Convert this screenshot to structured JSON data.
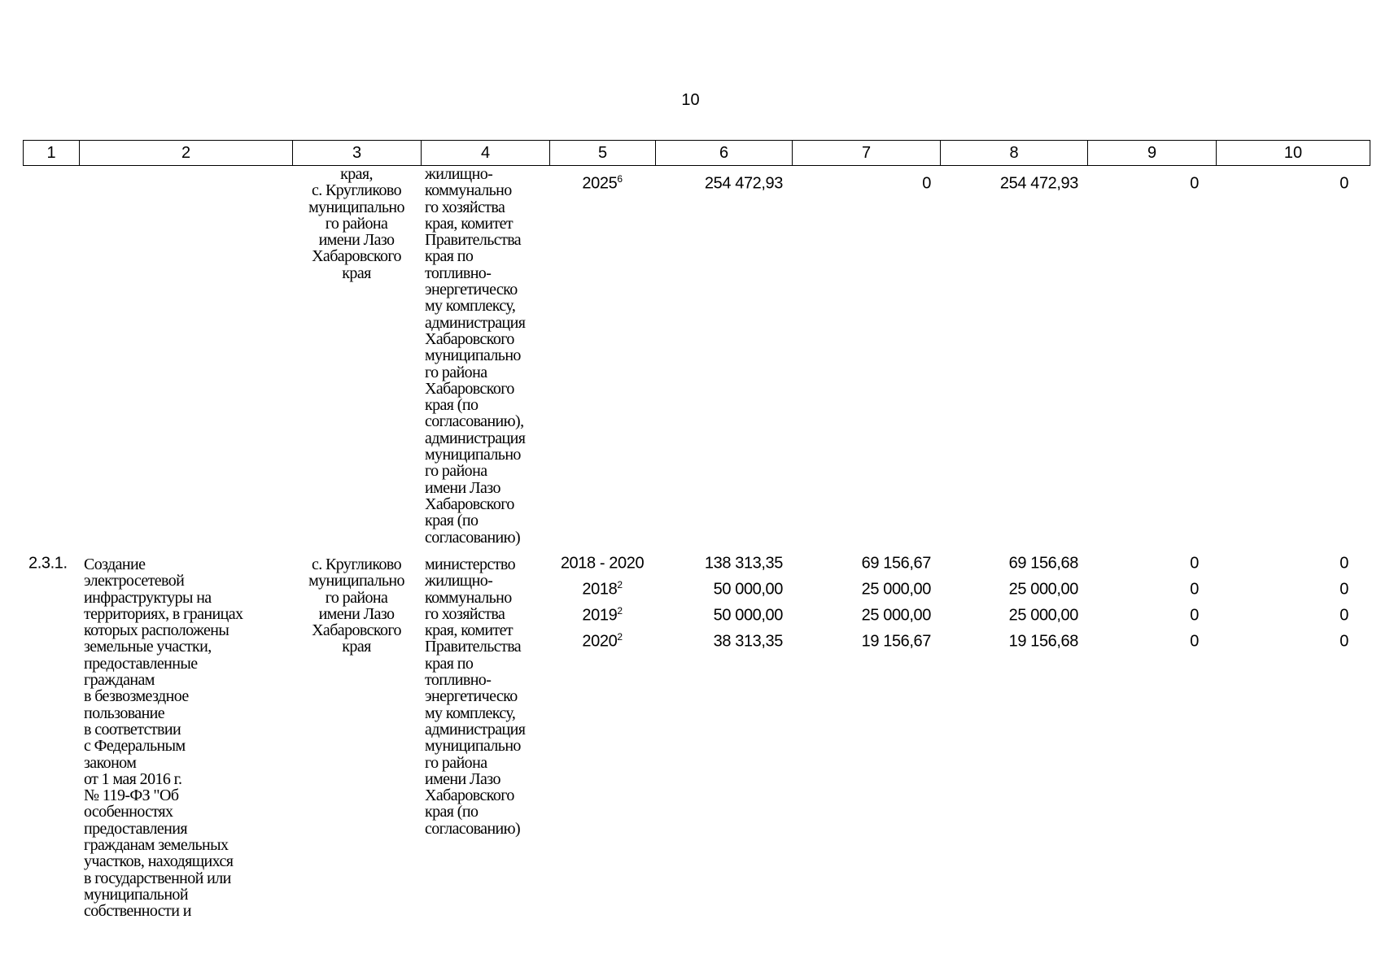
{
  "page_number": "10",
  "header_columns": [
    "1",
    "2",
    "3",
    "4",
    "5",
    "6",
    "7",
    "8",
    "9",
    "10"
  ],
  "row_continuation": {
    "col3": "края,\nс. Кругликово\nмуниципально\nго района\nимени Лазо\nХабаровского\nкрая",
    "col4": "жилищно-\nкоммунально\nго хозяйства\nкрая, комитет\nПравительства\nкрая по\nтопливно-\nэнергетическо\nму комплексу,\nадминистрация\nХабаровского\nмуниципально\nго района\nХабаровского\nкрая (по\nсогласованию),\nадминистрация\nмуниципально\nго района\nимени Лазо\nХабаровского\nкрая (по\nсогласованию)",
    "years": [
      {
        "year": "2025",
        "note": "6",
        "col6": "254 472,93",
        "col7": "0",
        "col8": "254 472,93",
        "col9": "0",
        "col10": "0"
      }
    ]
  },
  "row_2_3_1": {
    "number": "2.3.1.",
    "col2": "Создание\nэлектросетевой\nинфраструктуры на\nтерриториях, в границах\nкоторых расположены\nземельные участки,\nпредоставленные\nгражданам\nв безвозмездное\nпользование\nв соответствии\nс Федеральным\nзаконом\nот 1 мая 2016 г.\n№ 119-ФЗ \"Об\nособенностях\nпредоставления\nгражданам земельных\nучастков, находящихся\nв государственной или\nмуниципальной\nсобственности и",
    "col3": "с. Кругликово\nмуниципально\nго района\nимени Лазо\nХабаровского\nкрая",
    "col4": "министерство\nжилищно-\nкоммунально\nго хозяйства\nкрая, комитет\nПравительства\nкрая по\nтопливно-\nэнергетическо\nму комплексу,\nадминистрация\nмуниципально\nго района\nимени Лазо\nХабаровского\nкрая (по\nсогласованию)",
    "years": [
      {
        "year": "2018 - 2020",
        "note": "",
        "col6": "138 313,35",
        "col7": "69 156,67",
        "col8": "69 156,68",
        "col9": "0",
        "col10": "0"
      },
      {
        "year": "2018",
        "note": "2",
        "col6": "50 000,00",
        "col7": "25 000,00",
        "col8": "25 000,00",
        "col9": "0",
        "col10": "0"
      },
      {
        "year": "2019",
        "note": "2",
        "col6": "50 000,00",
        "col7": "25 000,00",
        "col8": "25 000,00",
        "col9": "0",
        "col10": "0"
      },
      {
        "year": "2020",
        "note": "2",
        "col6": "38 313,35",
        "col7": "19 156,67",
        "col8": "19 156,68",
        "col9": "0",
        "col10": "0"
      }
    ]
  }
}
